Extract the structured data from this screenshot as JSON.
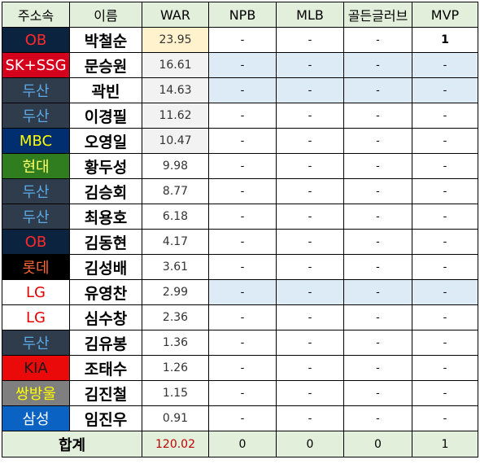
{
  "headers": [
    "주소속",
    "이름",
    "WAR",
    "NPB",
    "MLB",
    "골든글러브",
    "MVP"
  ],
  "rows": [
    {
      "team": "OB",
      "name": "박철순",
      "war": "23.95",
      "npb": "-",
      "mlb": "-",
      "gg": "-",
      "mvp": "1"
    },
    {
      "team": "SK+SSG",
      "name": "문승원",
      "war": "16.61",
      "npb": "-",
      "mlb": "-",
      "gg": "-",
      "mvp": "-"
    },
    {
      "team": "두산",
      "name": "곽빈",
      "war": "14.63",
      "npb": "-",
      "mlb": "-",
      "gg": "-",
      "mvp": "-"
    },
    {
      "team": "두산",
      "name": "이경필",
      "war": "11.62",
      "npb": "-",
      "mlb": "-",
      "gg": "-",
      "mvp": "-"
    },
    {
      "team": "MBC",
      "name": "오영일",
      "war": "10.47",
      "npb": "-",
      "mlb": "-",
      "gg": "-",
      "mvp": "-"
    },
    {
      "team": "현대",
      "name": "황두성",
      "war": "9.98",
      "npb": "-",
      "mlb": "-",
      "gg": "-",
      "mvp": "-"
    },
    {
      "team": "두산",
      "name": "김승회",
      "war": "8.77",
      "npb": "-",
      "mlb": "-",
      "gg": "-",
      "mvp": "-"
    },
    {
      "team": "두산",
      "name": "최용호",
      "war": "6.18",
      "npb": "-",
      "mlb": "-",
      "gg": "-",
      "mvp": "-"
    },
    {
      "team": "OB",
      "name": "김동현",
      "war": "4.17",
      "npb": "-",
      "mlb": "-",
      "gg": "-",
      "mvp": "-"
    },
    {
      "team": "롯데",
      "name": "김성배",
      "war": "3.61",
      "npb": "-",
      "mlb": "-",
      "gg": "-",
      "mvp": "-"
    },
    {
      "team": "LG",
      "name": "유영찬",
      "war": "2.99",
      "npb": "-",
      "mlb": "-",
      "gg": "-",
      "mvp": "-"
    },
    {
      "team": "LG",
      "name": "심수창",
      "war": "2.36",
      "npb": "-",
      "mlb": "-",
      "gg": "-",
      "mvp": "-"
    },
    {
      "team": "두산",
      "name": "김유봉",
      "war": "1.36",
      "npb": "-",
      "mlb": "-",
      "gg": "-",
      "mvp": "-"
    },
    {
      "team": "KIA",
      "name": "조태수",
      "war": "1.26",
      "npb": "-",
      "mlb": "-",
      "gg": "-",
      "mvp": "-"
    },
    {
      "team": "쌍방울",
      "name": "김진철",
      "war": "1.15",
      "npb": "-",
      "mlb": "-",
      "gg": "-",
      "mvp": "-"
    },
    {
      "team": "삼성",
      "name": "임진우",
      "war": "0.91",
      "npb": "-",
      "mlb": "-",
      "gg": "-",
      "mvp": "-"
    }
  ],
  "total": {
    "label": "합계",
    "war": "120.02",
    "npb": "0",
    "mlb": "0",
    "gg": "0",
    "mvp": "1"
  },
  "team_colors": {
    "OB": {
      "bg": "#0c2340",
      "fg": "#ff2a2a"
    },
    "SK+SSG": {
      "bg": "#d4021c",
      "fg": "#ffffff"
    },
    "두산": {
      "bg": "#2f3c4b",
      "fg": "#5aa9e6"
    },
    "MBC": {
      "bg": "#002e6e",
      "fg": "#ffff00"
    },
    "현대": {
      "bg": "#2f7d1f",
      "fg": "#ffff66"
    },
    "롯데": {
      "bg": "#000000",
      "fg": "#ff6633"
    },
    "LG": {
      "bg": "#ffffff",
      "fg": "#e40000"
    },
    "KIA": {
      "bg": "#ea0a0a",
      "fg": "#1a1a1a"
    },
    "쌍방울": {
      "bg": "#7f7f7f",
      "fg": "#ffff00"
    },
    "삼성": {
      "bg": "#0a62c2",
      "fg": "#ffffff"
    }
  },
  "blue_rows": [
    1,
    2,
    10
  ],
  "war_shading": {
    "top": [
      0
    ],
    "grey": [
      1,
      2,
      3,
      4
    ]
  }
}
